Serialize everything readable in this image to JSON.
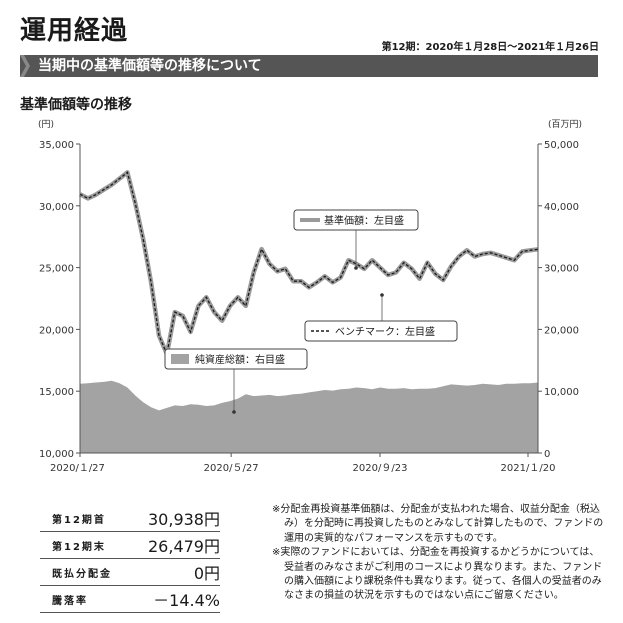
{
  "header": {
    "title": "運用経過",
    "period": "第12期：2020年１月28日～2021年１月26日"
  },
  "banner": {
    "text": "当期中の基準価額等の推移について"
  },
  "section": {
    "title": "基準価額等の推移"
  },
  "chart_data": {
    "type": "line",
    "left_unit": "(円)",
    "right_unit": "(百万円)",
    "y_ticks": [
      "35,000",
      "30,000",
      "25,000",
      "20,000",
      "15,000",
      "10,000"
    ],
    "y2_ticks": [
      "50,000",
      "40,000",
      "30,000",
      "20,000",
      "10,000",
      "0"
    ],
    "x_ticks": [
      "2020/１/27",
      "2020/５/27",
      "2020/９/23",
      "2021/１/20"
    ],
    "ylim": [
      10000,
      35000
    ],
    "y2lim": [
      0,
      50000
    ],
    "grid": false,
    "series": [
      {
        "name": "基準価額：左目盛",
        "axis": "left",
        "kind": "line",
        "color": "#9a9a9a",
        "values": [
          30938,
          30600,
          30900,
          31300,
          31700,
          32200,
          32700,
          30200,
          27300,
          23800,
          19500,
          18000,
          21400,
          21100,
          19800,
          21900,
          22600,
          21400,
          20700,
          21900,
          22600,
          21900,
          24600,
          26500,
          25300,
          24700,
          24900,
          23900,
          23900,
          23400,
          23800,
          24300,
          23800,
          24200,
          25600,
          25300,
          24900,
          25600,
          25000,
          24400,
          24600,
          25400,
          24900,
          24100,
          25400,
          24500,
          24000,
          25100,
          25900,
          26400,
          25900,
          26100,
          26200,
          26000,
          25800,
          25600,
          26300,
          26400,
          26479
        ]
      },
      {
        "name": "ベンチマーク：左目盛",
        "axis": "left",
        "kind": "dashed",
        "color": "#1a1a1a",
        "values": [
          30938,
          30600,
          30900,
          31300,
          31700,
          32200,
          32700,
          30200,
          27300,
          23800,
          19500,
          18000,
          21400,
          21100,
          19800,
          21900,
          22600,
          21400,
          20700,
          21900,
          22600,
          21900,
          24600,
          26500,
          25300,
          24700,
          24900,
          23900,
          23900,
          23400,
          23800,
          24300,
          23800,
          24200,
          25600,
          25300,
          24900,
          25600,
          25000,
          24400,
          24600,
          25400,
          24900,
          24100,
          25400,
          24500,
          24000,
          25100,
          25900,
          26400,
          25900,
          26100,
          26200,
          26000,
          25800,
          25600,
          26300,
          26400,
          26479
        ]
      },
      {
        "name": "純資産総額：右目盛",
        "axis": "right",
        "kind": "area",
        "color": "#a3a3a3",
        "values": [
          11200,
          11300,
          11400,
          11500,
          11700,
          11300,
          10600,
          9300,
          8200,
          7400,
          6900,
          7300,
          7700,
          7600,
          7900,
          7800,
          7600,
          7700,
          8100,
          8400,
          8800,
          9500,
          9200,
          9300,
          9400,
          9200,
          9300,
          9500,
          9600,
          9800,
          10000,
          10200,
          10100,
          10300,
          10400,
          10600,
          10500,
          10300,
          10600,
          10400,
          10400,
          10500,
          10300,
          10400,
          10400,
          10500,
          10800,
          11100,
          11000,
          10900,
          11000,
          11200,
          11100,
          11000,
          11200,
          11200,
          11300,
          11300,
          11400
        ]
      }
    ],
    "legend": [
      {
        "label": "基準価額：左目盛",
        "kind": "line"
      },
      {
        "label": "ベンチマーク：左目盛",
        "kind": "dashed"
      },
      {
        "label": "純資産総額：右目盛",
        "kind": "area"
      }
    ]
  },
  "stats": [
    {
      "label": "第12期首",
      "value": "30,938円"
    },
    {
      "label": "第12期末",
      "value": "26,479円"
    },
    {
      "label": "既払分配金",
      "value": "0円"
    },
    {
      "label": "騰落率",
      "value": "－14.4%"
    }
  ],
  "notes": [
    "※分配金再投資基準価額は、分配金が支払われた場合、収益分配金（税込み）を分配時に再投資したものとみなして計算したもので、ファンドの運用の実質的なパフォーマンスを示すものです。",
    "※実際のファンドにおいては、分配金を再投資するかどうかについては、受益者のみなさまがご利用のコースにより異なります。また、ファンドの購入価額により課税条件も異なります。従って、各個人の受益者のみなさまの損益の状況を示すものではない点にご留意ください。"
  ]
}
